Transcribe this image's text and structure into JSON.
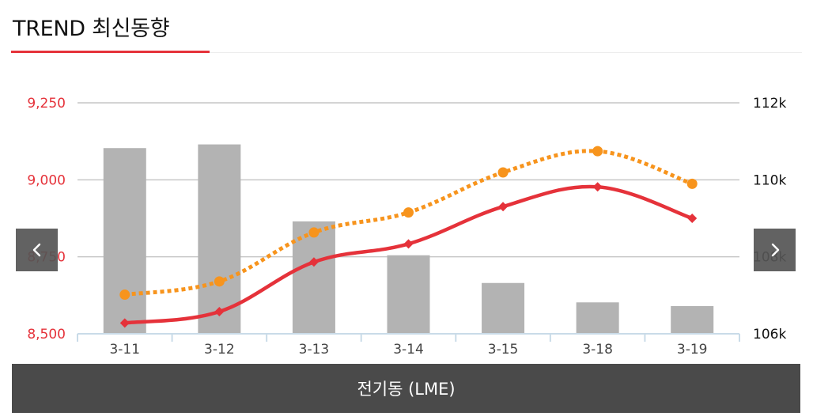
{
  "header": {
    "title": "TREND 최신동향"
  },
  "nav": {
    "prev_icon": "chevron-left-icon",
    "next_icon": "chevron-right-icon"
  },
  "footer": {
    "label": "전기동 (LME)"
  },
  "colors": {
    "accent": "#e5323a",
    "bars": "#b3b3b3",
    "dotted_line": "#f7941d",
    "grid": "#c6c6c6",
    "axis": "#c9dbe8",
    "footer_bg": "#4a4a4a"
  },
  "chart_data": {
    "type": "bar+line",
    "categories": [
      "3-11",
      "3-12",
      "3-13",
      "3-14",
      "3-15",
      "3-18",
      "3-19"
    ],
    "left_axis": {
      "ylim": [
        8500,
        9250
      ],
      "ticks": [
        "8,500",
        "8,750",
        "9,000",
        "9,250"
      ],
      "tick_values": [
        8500,
        8750,
        9000,
        9250
      ],
      "color": "#e5323a"
    },
    "right_axis": {
      "ylim": [
        106,
        112
      ],
      "ticks": [
        "106k",
        "108k",
        "110k",
        "112k"
      ],
      "tick_values": [
        106,
        108,
        110,
        112
      ]
    },
    "series": [
      {
        "type": "bar",
        "axis": "left",
        "color": "#b3b3b3",
        "values": [
          9103,
          9115,
          8865,
          8755,
          8665,
          8602,
          8590
        ]
      },
      {
        "type": "line",
        "axis": "left",
        "color": "#e5323a",
        "marker": "diamond",
        "values": [
          8535,
          8572,
          8733,
          8792,
          8913,
          8977,
          8875
        ]
      },
      {
        "type": "line",
        "axis": "left",
        "color": "#f7941d",
        "marker": "circle",
        "style": "dotted",
        "values": [
          8627,
          8670,
          8829,
          8894,
          9024,
          9093,
          8987
        ]
      }
    ],
    "grid": true
  }
}
